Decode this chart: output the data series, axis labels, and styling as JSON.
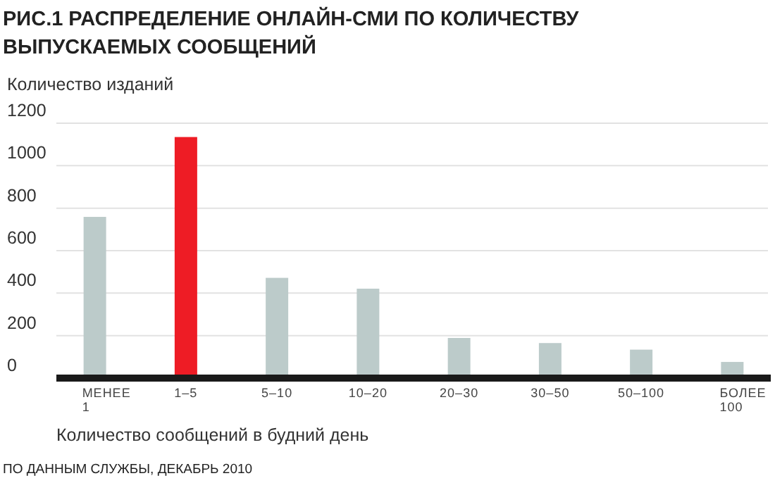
{
  "chart_data": {
    "type": "bar",
    "title": "РИС.1 РАСПРЕДЕЛЕНИЕ ОНЛАЙН-СМИ ПО КОЛИЧЕСТВУ ВЫПУСКАЕМЫХ СООБЩЕНИЙ",
    "ylabel": "Количество изданий",
    "xlabel": "Количество сообщений в будний день",
    "categories": [
      "МЕНЕЕ 1",
      "1–5",
      "5–10",
      "10–20",
      "20–30",
      "30–50",
      "50–100",
      "БОЛЕЕ 100"
    ],
    "values": [
      759,
      1135,
      472,
      421,
      189,
      165,
      134,
      76
    ],
    "colors": [
      "#bccbca",
      "#ee1c25",
      "#bccbca",
      "#bccbca",
      "#bccbca",
      "#bccbca",
      "#bccbca",
      "#bccbca"
    ],
    "ylim": [
      0,
      1200
    ],
    "yticks": [
      0,
      200,
      400,
      600,
      800,
      1000,
      1200
    ],
    "grid": "y",
    "annotations": [
      "ПО ДАННЫМ СЛУЖБЫ, ДЕКАБРЬ 2010"
    ]
  }
}
